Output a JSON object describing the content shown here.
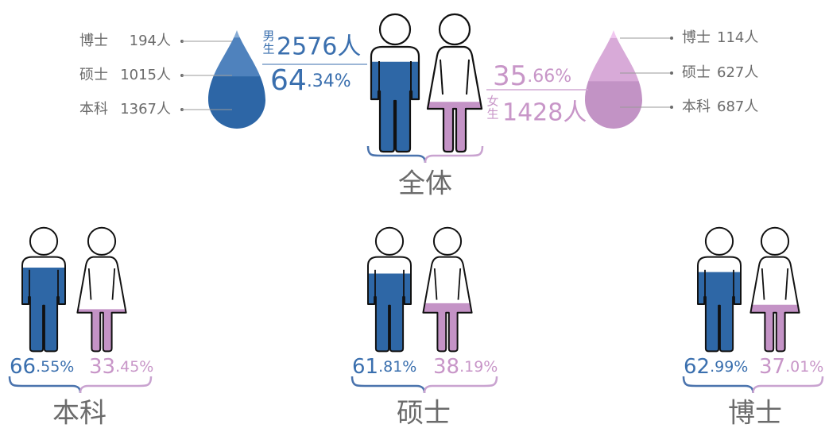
{
  "overall": {
    "title": "全体",
    "male": {
      "name": "男生",
      "count": {
        "value": 2576,
        "label": "2576人"
      },
      "percent": {
        "value": 64.34,
        "label": "64.34%"
      },
      "breakdown": [
        {
          "name": "博士",
          "count": {
            "value": 194,
            "label": "194人"
          }
        },
        {
          "name": "硕士",
          "count": {
            "value": 1015,
            "label": "1015人"
          }
        },
        {
          "name": "本科",
          "count": {
            "value": 1367,
            "label": "1367人"
          }
        }
      ]
    },
    "female": {
      "name": "女生",
      "count": {
        "value": 1428,
        "label": "1428人"
      },
      "percent": {
        "value": 35.66,
        "label": "35.66%"
      },
      "breakdown": [
        {
          "name": "博士",
          "count": {
            "value": 114,
            "label": "114人"
          }
        },
        {
          "name": "硕士",
          "count": {
            "value": 627,
            "label": "627人"
          }
        },
        {
          "name": "本科",
          "count": {
            "value": 687,
            "label": "687人"
          }
        }
      ]
    }
  },
  "groups": [
    {
      "title": "本科",
      "male_percent": {
        "value": 66.55,
        "label": "66.55%"
      },
      "female_percent": {
        "value": 33.45,
        "label": "33.45%"
      }
    },
    {
      "title": "硕士",
      "male_percent": {
        "value": 61.81,
        "label": "61.81%"
      },
      "female_percent": {
        "value": 38.19,
        "label": "38.19%"
      }
    },
    {
      "title": "博士",
      "male_percent": {
        "value": 62.99,
        "label": "62.99%"
      },
      "female_percent": {
        "value": 37.01,
        "label": "37.01%"
      }
    }
  ]
}
